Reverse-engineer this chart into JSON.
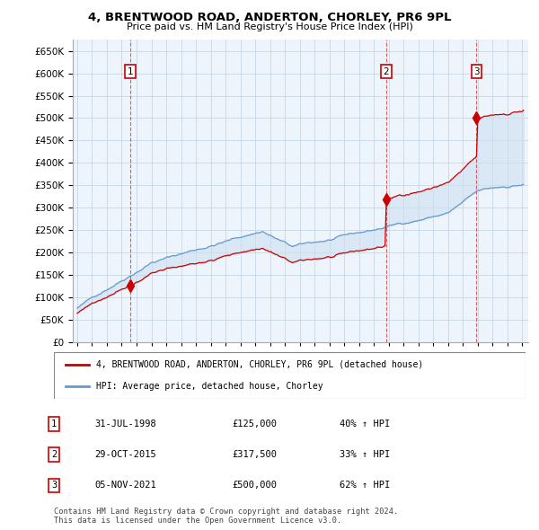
{
  "title": "4, BRENTWOOD ROAD, ANDERTON, CHORLEY, PR6 9PL",
  "subtitle": "Price paid vs. HM Land Registry's House Price Index (HPI)",
  "ylim": [
    0,
    675000
  ],
  "yticks": [
    0,
    50000,
    100000,
    150000,
    200000,
    250000,
    300000,
    350000,
    400000,
    450000,
    500000,
    550000,
    600000,
    650000
  ],
  "sale_year_nums": [
    1998.583,
    2015.833,
    2021.917
  ],
  "sale_prices": [
    125000,
    317500,
    500000
  ],
  "sale_labels": [
    "1",
    "2",
    "3"
  ],
  "sale_color": "#cc0000",
  "hpi_color": "#6699cc",
  "fill_color": "#cce0f0",
  "grid_color": "#c0cfe0",
  "plot_bg_color": "#eef4fb",
  "legend_property_label": "4, BRENTWOOD ROAD, ANDERTON, CHORLEY, PR6 9PL (detached house)",
  "legend_hpi_label": "HPI: Average price, detached house, Chorley",
  "table_rows": [
    [
      "1",
      "31-JUL-1998",
      "£125,000",
      "40% ↑ HPI"
    ],
    [
      "2",
      "29-OCT-2015",
      "£317,500",
      "33% ↑ HPI"
    ],
    [
      "3",
      "05-NOV-2021",
      "£500,000",
      "62% ↑ HPI"
    ]
  ],
  "footer": "Contains HM Land Registry data © Crown copyright and database right 2024.\nThis data is licensed under the Open Government Licence v3.0.",
  "background_color": "#ffffff"
}
